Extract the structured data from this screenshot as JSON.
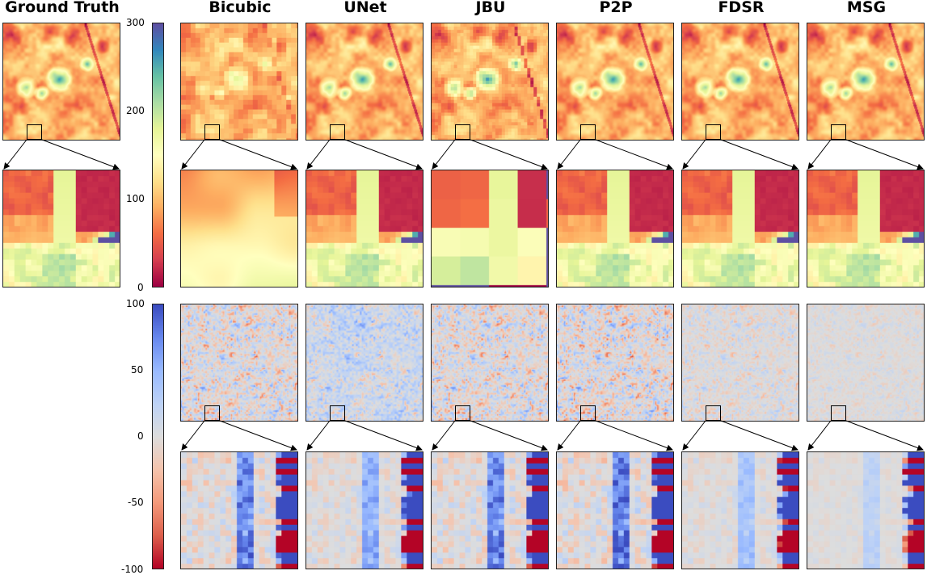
{
  "columns": [
    {
      "id": "gt",
      "title": "Ground Truth"
    },
    {
      "id": "bicubic",
      "title": "Bicubic"
    },
    {
      "id": "unet",
      "title": "UNet"
    },
    {
      "id": "jbu",
      "title": "JBU"
    },
    {
      "id": "p2p",
      "title": "P2P"
    },
    {
      "id": "fdsr",
      "title": "FDSR"
    },
    {
      "id": "msg",
      "title": "MSG"
    }
  ],
  "colorbars": {
    "prediction": {
      "colormap": "Spectral",
      "range": [
        0,
        300
      ],
      "ticks": [
        "0",
        "100",
        "200",
        "300"
      ]
    },
    "error": {
      "colormap": "coolwarm_r",
      "range": [
        -100,
        100
      ],
      "ticks": [
        "-100",
        "-50",
        "0",
        "50",
        "100"
      ]
    }
  },
  "chart_data": {
    "type": "heatmap",
    "description_rows": [
      "prediction",
      "prediction zoom",
      "error",
      "error zoom"
    ],
    "prediction_range": [
      0,
      300
    ],
    "error_range": [
      -100,
      100
    ],
    "zoom_region": "small square near bottom-left of each map"
  }
}
